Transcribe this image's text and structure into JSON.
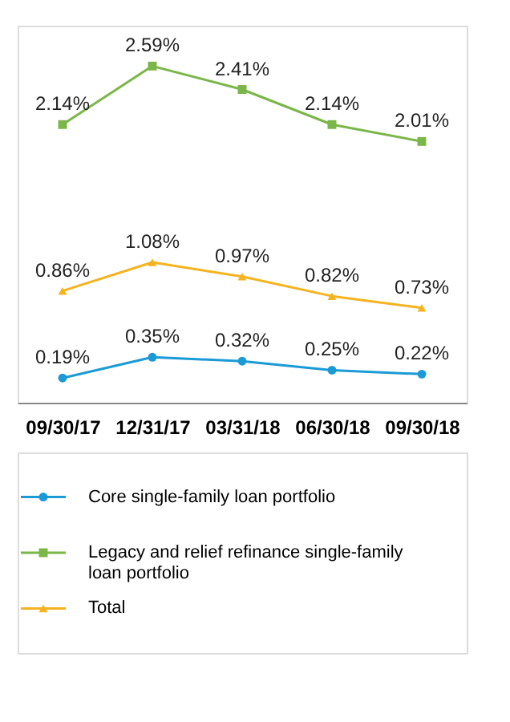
{
  "chart_data": {
    "type": "line",
    "categories": [
      "09/30/17",
      "12/31/17",
      "03/31/18",
      "06/30/18",
      "09/30/18"
    ],
    "series": [
      {
        "name": "Core single-family loan portfolio",
        "color": "#1b9ad6",
        "marker": "circle",
        "values": [
          0.19,
          0.35,
          0.32,
          0.25,
          0.22
        ],
        "value_labels": [
          "0.19%",
          "0.35%",
          "0.32%",
          "0.25%",
          "0.22%"
        ]
      },
      {
        "name": "Legacy and relief refinance single-family loan portfolio",
        "color": "#7ab648",
        "marker": "square",
        "values": [
          2.14,
          2.59,
          2.41,
          2.14,
          2.01
        ],
        "value_labels": [
          "2.14%",
          "2.59%",
          "2.41%",
          "2.14%",
          "2.01%"
        ]
      },
      {
        "name": "Total",
        "color": "#f5b320",
        "marker": "triangle",
        "values": [
          0.86,
          1.08,
          0.97,
          0.82,
          0.73
        ],
        "value_labels": [
          "0.86%",
          "1.08%",
          "0.97%",
          "0.82%",
          "0.73%"
        ]
      }
    ],
    "tick_labels": "x",
    "legend": "bottom",
    "line_style": "solid"
  }
}
